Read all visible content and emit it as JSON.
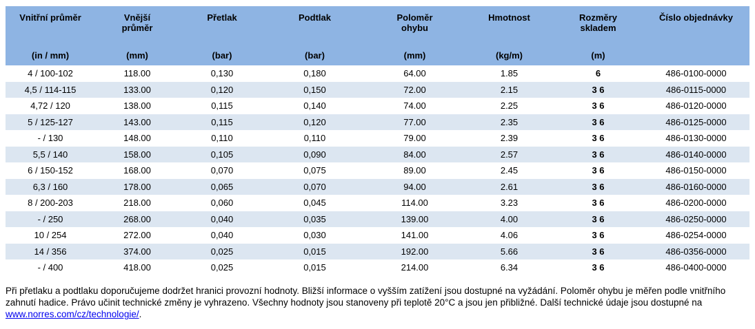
{
  "colors": {
    "header_bg": "#8EB4E3",
    "stripe_bg": "#DCE6F1",
    "link": "#0000EE"
  },
  "table": {
    "columns": [
      {
        "name": "Vnitřní průměr",
        "unit": "(in / mm)"
      },
      {
        "name": "Vnější průměr",
        "unit": "(mm)"
      },
      {
        "name": "Přetlak",
        "unit": "(bar)"
      },
      {
        "name": "Podtlak",
        "unit": "(bar)"
      },
      {
        "name": "Poloměr ohybu",
        "unit": "(mm)"
      },
      {
        "name": "Hmotnost",
        "unit": "(kg/m)"
      },
      {
        "name": "Rozměry skladem",
        "unit": "(m)"
      },
      {
        "name": "Číslo objednávky",
        "unit": ""
      }
    ],
    "rows": [
      [
        "4 / 100-102",
        "118.00",
        "0,130",
        "0,180",
        "64.00",
        "1.85",
        "6",
        "486-0100-0000"
      ],
      [
        "4,5 / 114-115",
        "133.00",
        "0,120",
        "0,150",
        "72.00",
        "2.15",
        "3 6",
        "486-0115-0000"
      ],
      [
        "4,72 / 120",
        "138.00",
        "0,115",
        "0,140",
        "74.00",
        "2.25",
        "3 6",
        "486-0120-0000"
      ],
      [
        "5 / 125-127",
        "143.00",
        "0,115",
        "0,120",
        "77.00",
        "2.35",
        "3 6",
        "486-0125-0000"
      ],
      [
        "- / 130",
        "148.00",
        "0,110",
        "0,110",
        "79.00",
        "2.39",
        "3 6",
        "486-0130-0000"
      ],
      [
        "5,5 / 140",
        "158.00",
        "0,105",
        "0,090",
        "84.00",
        "2.57",
        "3 6",
        "486-0140-0000"
      ],
      [
        "6 / 150-152",
        "168.00",
        "0,070",
        "0,075",
        "89.00",
        "2.45",
        "3 6",
        "486-0150-0000"
      ],
      [
        "6,3 / 160",
        "178.00",
        "0,065",
        "0,070",
        "94.00",
        "2.61",
        "3 6",
        "486-0160-0000"
      ],
      [
        "8 / 200-203",
        "218.00",
        "0,060",
        "0,045",
        "114.00",
        "3.23",
        "3 6",
        "486-0200-0000"
      ],
      [
        "- / 250",
        "268.00",
        "0,040",
        "0,035",
        "139.00",
        "4.00",
        "3 6",
        "486-0250-0000"
      ],
      [
        "10 / 254",
        "272.00",
        "0,040",
        "0,030",
        "141.00",
        "4.06",
        "3 6",
        "486-0254-0000"
      ],
      [
        "14 / 356",
        "374.00",
        "0,025",
        "0,015",
        "192.00",
        "5.66",
        "3 6",
        "486-0356-0000"
      ],
      [
        "- / 400",
        "418.00",
        "0,025",
        "0,015",
        "214.00",
        "6.34",
        "3 6",
        "486-0400-0000"
      ]
    ]
  },
  "footnote": {
    "text_before_link": "Při přetlaku a podtlaku doporučujeme dodržet hranici provozní hodnoty. Bližší informace o vyšším zatížení jsou dostupné na vyžádání. Poloměr ohybu je měřen podle vnitřního zahnutí hadice. Právo učinit technické změny je vyhrazeno. Všechny hodnoty jsou stanoveny při teplotě 20°C a jsou jen přibližné. Další technické údaje jsou dostupné na ",
    "link_text": "www.norres.com/cz/technologie/",
    "text_after_link": "."
  }
}
